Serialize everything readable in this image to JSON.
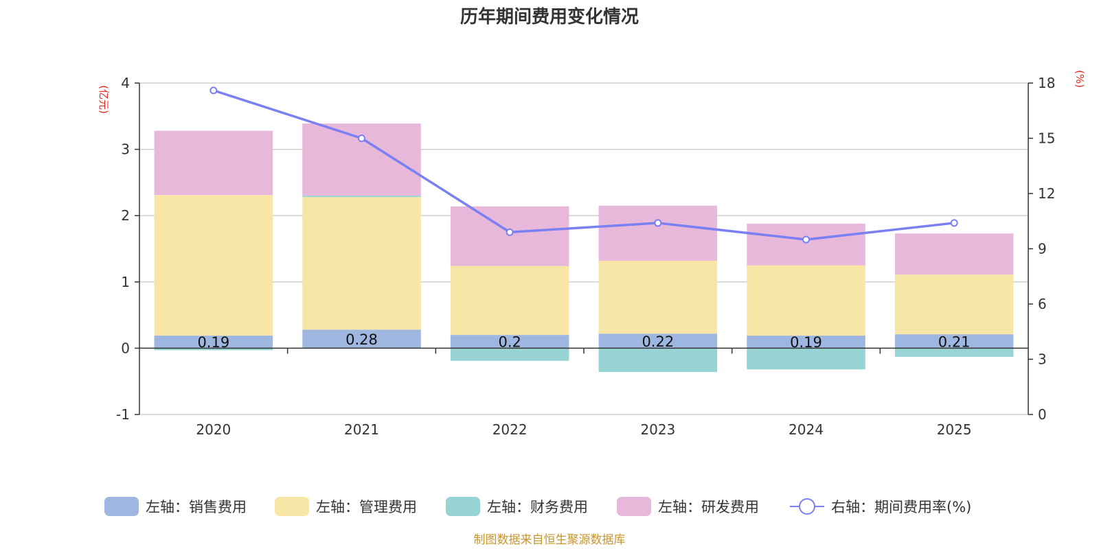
{
  "chart_data": {
    "type": "bar",
    "stacked": true,
    "title": "历年期间费用变化情况",
    "categories": [
      "2020",
      "2021",
      "2022",
      "2023",
      "2024",
      "2025"
    ],
    "left_axis": {
      "unit": "(亿元)",
      "ylim": [
        -1,
        4
      ],
      "ticks": [
        -1,
        0,
        1,
        2,
        3,
        4
      ]
    },
    "right_axis": {
      "unit": "(%)",
      "ylim": [
        0,
        18
      ],
      "ticks": [
        0,
        3,
        6,
        9,
        12,
        15,
        18
      ]
    },
    "series": [
      {
        "name": "左轴：销售费用",
        "axis": "left",
        "color": "#9db7e1",
        "values": [
          0.19,
          0.28,
          0.2,
          0.22,
          0.19,
          0.21
        ],
        "labels": [
          "0.19",
          "0.28",
          "0.2",
          "0.22",
          "0.19",
          "0.21"
        ]
      },
      {
        "name": "左轴：管理费用",
        "axis": "left",
        "color": "#f7e6a6",
        "values": [
          2.12,
          2.0,
          1.04,
          1.1,
          1.06,
          0.9
        ]
      },
      {
        "name": "左轴：财务费用",
        "axis": "left",
        "color": "#98d4d4",
        "values": [
          -0.03,
          0.02,
          -0.19,
          -0.36,
          -0.32,
          -0.13
        ]
      },
      {
        "name": "左轴：研发费用",
        "axis": "left",
        "color": "#e7b8d9",
        "values": [
          0.97,
          1.09,
          0.9,
          0.83,
          0.63,
          0.62
        ]
      },
      {
        "name": "右轴：期间费用率(%)",
        "axis": "right",
        "type": "line",
        "color": "#7a80f2",
        "values": [
          17.6,
          15.0,
          9.9,
          10.4,
          9.5,
          10.4
        ]
      }
    ]
  },
  "footer": {
    "source": "制图数据来自恒生聚源数据库"
  }
}
